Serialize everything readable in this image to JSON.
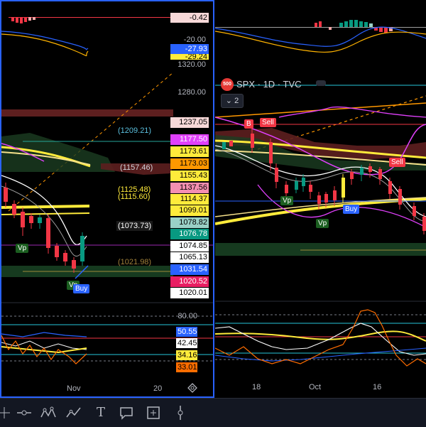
{
  "left_pane": {
    "macd_readout": "-0.42",
    "osc_readouts": [
      "-20.00",
      "-27.93",
      "-29.24"
    ],
    "price_axis_top": [
      "1320.00",
      "1280.00"
    ],
    "price_labels": [
      {
        "text": "1237.05",
        "bg": "#f7d8d8",
        "fg": "#000"
      },
      {
        "text": "1177.50",
        "bg": "#e040fb",
        "fg": "#fff"
      },
      {
        "text": "1173.61",
        "bg": "#ffeb3b",
        "fg": "#000"
      },
      {
        "text": "1173.03",
        "bg": "#ff9800",
        "fg": "#000"
      },
      {
        "text": "1155.43",
        "bg": "#ffeb3b",
        "fg": "#000"
      },
      {
        "text": "1137.56",
        "bg": "#f48fb1",
        "fg": "#000"
      },
      {
        "text": "1114.37",
        "bg": "#ffeb3b",
        "fg": "#000"
      },
      {
        "text": "1099.01",
        "bg": "#ffeb3b",
        "fg": "#000"
      },
      {
        "text": "1078.82",
        "bg": "#9ad1c7",
        "fg": "#000"
      },
      {
        "text": "1076.78",
        "bg": "#089981",
        "fg": "#fff"
      },
      {
        "text": "1074.85",
        "bg": "#ffffff",
        "fg": "#000"
      },
      {
        "text": "1065.13",
        "bg": "#ffffff",
        "fg": "#000"
      },
      {
        "text": "1031.54",
        "bg": "#2962ff",
        "fg": "#fff"
      },
      {
        "text": "1020.52",
        "bg": "#e91e63",
        "fg": "#fff"
      },
      {
        "text": "1020.01",
        "bg": "#ffffff",
        "fg": "#000"
      }
    ],
    "inline_labels": {
      "l1209": "(1209.21)",
      "l1157": "(1157.46)",
      "l1125": "(1125.48)",
      "l1115": "(1115.60)",
      "l1073": "(1073.73)",
      "l1021": "(1021.98)"
    },
    "signals": {
      "vp1": "Vp",
      "vp2": "Vp",
      "buy": "Buy"
    },
    "rsi_level": "80.00",
    "rsi_labels": [
      {
        "text": "50.55",
        "bg": "#2962ff",
        "fg": "#fff"
      },
      {
        "text": "42.45",
        "bg": "#ffffff",
        "fg": "#000"
      },
      {
        "text": "34.16",
        "bg": "#ffeb3b",
        "fg": "#000"
      },
      {
        "text": "33.01",
        "bg": "#ff6d00",
        "fg": "#000"
      }
    ],
    "x_labels": [
      "Nov",
      "20"
    ]
  },
  "right_pane": {
    "symbol_badge": "500",
    "legend_title": "SPX · 1D · TVC",
    "indicator_count": "2",
    "signals": {
      "b": "B",
      "sell1": "Sell",
      "sell2": "Sell",
      "vp1": "Vp",
      "vp2": "Vp",
      "buy": "Buy"
    },
    "x_labels": [
      "18",
      "Oct",
      "16"
    ]
  },
  "toolbar": {
    "icons": [
      "cursor-icon",
      "horizontal-line-icon",
      "pattern-icon",
      "trend-icon",
      "text-icon",
      "callout-icon",
      "measure-icon",
      "vertical-line-icon"
    ],
    "text_tool_label": "T"
  },
  "colors": {
    "accent": "#2962ff",
    "up": "#089981",
    "down": "#f23645",
    "sma": "#ffeb3b"
  }
}
